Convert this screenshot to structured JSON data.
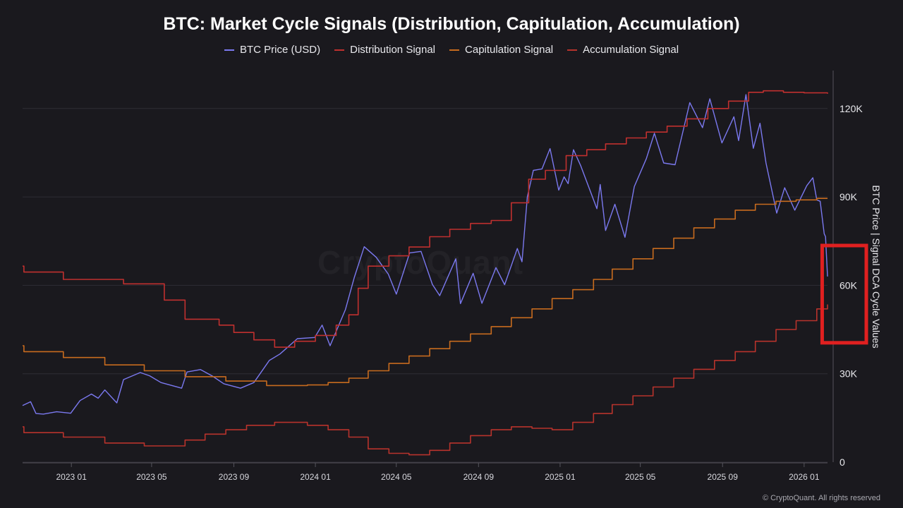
{
  "chart_data": {
    "type": "line",
    "title": "BTC: Market Cycle Signals (Distribution, Capitulation, Accumulation)",
    "ylabel": "BTC Price | Signal DCA Cycle Values",
    "ylim": [
      0,
      130000
    ],
    "y_ticks": [
      {
        "value": 0,
        "label": "0"
      },
      {
        "value": 30000,
        "label": "30K"
      },
      {
        "value": 60000,
        "label": "60K"
      },
      {
        "value": 90000,
        "label": "90K"
      },
      {
        "value": 120000,
        "label": "120K"
      }
    ],
    "xlim": [
      "2022-10-20",
      "2026-02-05"
    ],
    "x_ticks": [
      {
        "date": "2023-01-01",
        "label": "2023 01"
      },
      {
        "date": "2023-05-01",
        "label": "2023 05"
      },
      {
        "date": "2023-09-01",
        "label": "2023 09"
      },
      {
        "date": "2024-01-01",
        "label": "2024 01"
      },
      {
        "date": "2024-05-01",
        "label": "2024 05"
      },
      {
        "date": "2024-09-01",
        "label": "2024 09"
      },
      {
        "date": "2025-01-01",
        "label": "2025 01"
      },
      {
        "date": "2025-05-01",
        "label": "2025 05"
      },
      {
        "date": "2025-09-01",
        "label": "2025 09"
      },
      {
        "date": "2026-01-01",
        "label": "2026 01"
      }
    ],
    "grid": true,
    "legend_position": "top-center",
    "series": [
      {
        "name": "BTC Price (USD)",
        "color": "#7b79f0",
        "step": false,
        "points": [
          [
            "2022-10-20",
            19200
          ],
          [
            "2022-11-01",
            20500
          ],
          [
            "2022-11-09",
            16500
          ],
          [
            "2022-11-20",
            16300
          ],
          [
            "2022-12-10",
            17100
          ],
          [
            "2022-12-31",
            16600
          ],
          [
            "2023-01-14",
            20900
          ],
          [
            "2023-01-31",
            23100
          ],
          [
            "2023-02-10",
            21700
          ],
          [
            "2023-02-20",
            24500
          ],
          [
            "2023-03-10",
            20100
          ],
          [
            "2023-03-20",
            28000
          ],
          [
            "2023-04-14",
            30400
          ],
          [
            "2023-04-28",
            29300
          ],
          [
            "2023-05-15",
            27000
          ],
          [
            "2023-06-15",
            25100
          ],
          [
            "2023-06-23",
            30600
          ],
          [
            "2023-07-13",
            31400
          ],
          [
            "2023-07-31",
            29200
          ],
          [
            "2023-08-17",
            26600
          ],
          [
            "2023-09-11",
            25100
          ],
          [
            "2023-10-01",
            27000
          ],
          [
            "2023-10-24",
            34500
          ],
          [
            "2023-11-09",
            36700
          ],
          [
            "2023-12-05",
            41900
          ],
          [
            "2023-12-31",
            42300
          ],
          [
            "2024-01-11",
            46500
          ],
          [
            "2024-01-23",
            39500
          ],
          [
            "2024-02-15",
            51800
          ],
          [
            "2024-02-28",
            62500
          ],
          [
            "2024-03-14",
            73100
          ],
          [
            "2024-04-01",
            69500
          ],
          [
            "2024-04-19",
            63800
          ],
          [
            "2024-05-01",
            57000
          ],
          [
            "2024-05-21",
            71000
          ],
          [
            "2024-06-07",
            71500
          ],
          [
            "2024-06-24",
            60300
          ],
          [
            "2024-07-05",
            56500
          ],
          [
            "2024-07-29",
            69000
          ],
          [
            "2024-08-05",
            53800
          ],
          [
            "2024-08-24",
            64100
          ],
          [
            "2024-09-06",
            53900
          ],
          [
            "2024-09-27",
            66000
          ],
          [
            "2024-10-10",
            60200
          ],
          [
            "2024-10-29",
            72500
          ],
          [
            "2024-11-05",
            68000
          ],
          [
            "2024-11-13",
            90000
          ],
          [
            "2024-11-22",
            99000
          ],
          [
            "2024-12-05",
            99500
          ],
          [
            "2024-12-17",
            106400
          ],
          [
            "2024-12-30",
            92300
          ],
          [
            "2025-01-07",
            96800
          ],
          [
            "2025-01-13",
            94500
          ],
          [
            "2025-01-21",
            106000
          ],
          [
            "2025-02-01",
            100500
          ],
          [
            "2025-02-25",
            86000
          ],
          [
            "2025-03-02",
            94200
          ],
          [
            "2025-03-10",
            78600
          ],
          [
            "2025-03-24",
            87500
          ],
          [
            "2025-04-08",
            76300
          ],
          [
            "2025-04-22",
            93500
          ],
          [
            "2025-05-10",
            103000
          ],
          [
            "2025-05-22",
            111600
          ],
          [
            "2025-06-05",
            101500
          ],
          [
            "2025-06-22",
            100900
          ],
          [
            "2025-07-14",
            122000
          ],
          [
            "2025-08-02",
            113500
          ],
          [
            "2025-08-13",
            123300
          ],
          [
            "2025-08-31",
            108300
          ],
          [
            "2025-09-18",
            117200
          ],
          [
            "2025-09-25",
            109100
          ],
          [
            "2025-10-06",
            124700
          ],
          [
            "2025-10-17",
            106500
          ],
          [
            "2025-10-27",
            115000
          ],
          [
            "2025-11-05",
            101500
          ],
          [
            "2025-11-21",
            84500
          ],
          [
            "2025-12-03",
            93100
          ],
          [
            "2025-12-18",
            85500
          ],
          [
            "2026-01-05",
            93800
          ],
          [
            "2026-01-14",
            96500
          ],
          [
            "2026-01-20",
            89000
          ],
          [
            "2026-01-25",
            88500
          ],
          [
            "2026-01-31",
            77500
          ],
          [
            "2026-02-02",
            76500
          ],
          [
            "2026-02-05",
            63000
          ]
        ]
      },
      {
        "name": "Distribution Signal",
        "color": "#c0302f",
        "step": true,
        "points": [
          [
            "2022-10-20",
            66500
          ],
          [
            "2022-10-22",
            64500
          ],
          [
            "2022-12-20",
            62000
          ],
          [
            "2023-03-20",
            60500
          ],
          [
            "2023-05-20",
            55000
          ],
          [
            "2023-06-20",
            48500
          ],
          [
            "2023-08-10",
            46500
          ],
          [
            "2023-09-01",
            44000
          ],
          [
            "2023-10-01",
            41500
          ],
          [
            "2023-11-01",
            39000
          ],
          [
            "2023-12-01",
            41000
          ],
          [
            "2024-01-01",
            43000
          ],
          [
            "2024-02-01",
            46500
          ],
          [
            "2024-02-20",
            50000
          ],
          [
            "2024-03-05",
            59000
          ],
          [
            "2024-03-20",
            66500
          ],
          [
            "2024-04-20",
            70000
          ],
          [
            "2024-05-20",
            73000
          ],
          [
            "2024-06-20",
            76500
          ],
          [
            "2024-07-20",
            79000
          ],
          [
            "2024-08-20",
            81000
          ],
          [
            "2024-09-20",
            82000
          ],
          [
            "2024-10-20",
            88000
          ],
          [
            "2024-11-15",
            96000
          ],
          [
            "2024-12-10",
            99000
          ],
          [
            "2025-01-10",
            104000
          ],
          [
            "2025-02-10",
            106000
          ],
          [
            "2025-03-10",
            108000
          ],
          [
            "2025-04-10",
            110000
          ],
          [
            "2025-05-10",
            112000
          ],
          [
            "2025-06-10",
            114000
          ],
          [
            "2025-07-10",
            116500
          ],
          [
            "2025-08-10",
            120000
          ],
          [
            "2025-09-10",
            122500
          ],
          [
            "2025-10-10",
            125500
          ],
          [
            "2025-11-01",
            126000
          ],
          [
            "2025-12-01",
            125500
          ],
          [
            "2026-01-01",
            125300
          ],
          [
            "2026-02-05",
            125000
          ]
        ]
      },
      {
        "name": "Capitulation Signal",
        "color": "#c76b1e",
        "step": true,
        "points": [
          [
            "2022-10-20",
            39500
          ],
          [
            "2022-10-22",
            37500
          ],
          [
            "2022-12-20",
            35500
          ],
          [
            "2023-02-20",
            33000
          ],
          [
            "2023-04-20",
            31000
          ],
          [
            "2023-06-20",
            29000
          ],
          [
            "2023-08-20",
            27500
          ],
          [
            "2023-10-20",
            26000
          ],
          [
            "2023-12-20",
            26200
          ],
          [
            "2024-01-20",
            27000
          ],
          [
            "2024-02-20",
            28500
          ],
          [
            "2024-03-20",
            31000
          ],
          [
            "2024-04-20",
            33500
          ],
          [
            "2024-05-20",
            36000
          ],
          [
            "2024-06-20",
            38500
          ],
          [
            "2024-07-20",
            41000
          ],
          [
            "2024-08-20",
            43500
          ],
          [
            "2024-09-20",
            46000
          ],
          [
            "2024-10-20",
            49000
          ],
          [
            "2024-11-20",
            52000
          ],
          [
            "2024-12-20",
            55500
          ],
          [
            "2025-01-20",
            58500
          ],
          [
            "2025-02-20",
            62000
          ],
          [
            "2025-03-20",
            65500
          ],
          [
            "2025-04-20",
            69000
          ],
          [
            "2025-05-20",
            72500
          ],
          [
            "2025-06-20",
            76000
          ],
          [
            "2025-07-20",
            79500
          ],
          [
            "2025-08-20",
            82500
          ],
          [
            "2025-09-20",
            85500
          ],
          [
            "2025-10-20",
            87500
          ],
          [
            "2025-11-20",
            88500
          ],
          [
            "2025-12-20",
            89000
          ],
          [
            "2026-01-20",
            89500
          ],
          [
            "2026-02-05",
            89500
          ]
        ]
      },
      {
        "name": "Accumulation Signal",
        "color": "#b8332c",
        "step": true,
        "points": [
          [
            "2022-10-20",
            12000
          ],
          [
            "2022-10-22",
            10000
          ],
          [
            "2022-12-20",
            8500
          ],
          [
            "2023-02-20",
            6500
          ],
          [
            "2023-04-20",
            5500
          ],
          [
            "2023-06-20",
            7500
          ],
          [
            "2023-07-20",
            9500
          ],
          [
            "2023-08-20",
            11000
          ],
          [
            "2023-09-20",
            12500
          ],
          [
            "2023-11-01",
            13500
          ],
          [
            "2023-12-20",
            12500
          ],
          [
            "2024-01-20",
            11000
          ],
          [
            "2024-02-20",
            8500
          ],
          [
            "2024-03-20",
            4500
          ],
          [
            "2024-04-20",
            3000
          ],
          [
            "2024-05-20",
            2500
          ],
          [
            "2024-06-20",
            4000
          ],
          [
            "2024-07-20",
            6500
          ],
          [
            "2024-08-20",
            9000
          ],
          [
            "2024-09-20",
            11000
          ],
          [
            "2024-10-20",
            12000
          ],
          [
            "2024-11-20",
            11500
          ],
          [
            "2024-12-20",
            11000
          ],
          [
            "2025-01-20",
            13500
          ],
          [
            "2025-02-20",
            16500
          ],
          [
            "2025-03-20",
            19500
          ],
          [
            "2025-04-20",
            22500
          ],
          [
            "2025-05-20",
            25500
          ],
          [
            "2025-06-20",
            28500
          ],
          [
            "2025-07-20",
            31500
          ],
          [
            "2025-08-20",
            34500
          ],
          [
            "2025-09-20",
            37500
          ],
          [
            "2025-10-20",
            41000
          ],
          [
            "2025-11-20",
            45000
          ],
          [
            "2025-12-20",
            48000
          ],
          [
            "2026-01-20",
            52000
          ],
          [
            "2026-02-05",
            53500
          ]
        ]
      }
    ],
    "annotation": {
      "type": "highlight-box",
      "color": "#e02020",
      "x_range": [
        "2026-01-28",
        "2026-04-05"
      ],
      "y_range": [
        40500,
        73500
      ]
    }
  },
  "watermark": "CryptoQuant",
  "copyright": "© CryptoQuant. All rights reserved"
}
